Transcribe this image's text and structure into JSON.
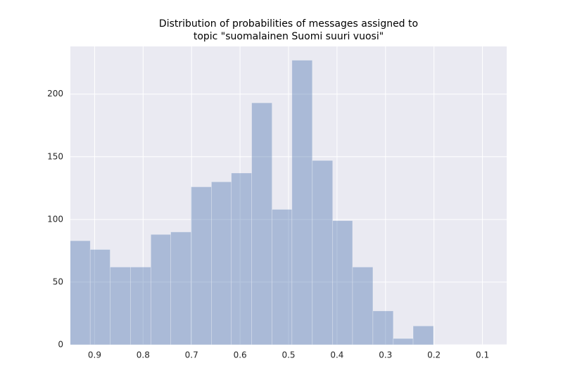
{
  "chart_data": {
    "type": "histogram",
    "title": [
      "Distribution of probabilities of messages assigned to",
      "topic \"suomalainen Suomi suuri vuosi\""
    ],
    "bins": [
      0.951,
      0.909,
      0.868,
      0.826,
      0.784,
      0.743,
      0.701,
      0.659,
      0.618,
      0.576,
      0.534,
      0.493,
      0.451,
      0.409,
      0.368,
      0.326,
      0.284,
      0.243,
      0.201
    ],
    "values": [
      83,
      76,
      62,
      62,
      88,
      90,
      126,
      130,
      137,
      193,
      108,
      227,
      147,
      99,
      62,
      27,
      5,
      15
    ],
    "color": "#4c72b0",
    "alpha": 0.4,
    "xlim": [
      0.95,
      0.05
    ],
    "xticks": [
      0.9,
      0.8,
      0.7,
      0.6,
      0.5,
      0.4,
      0.3,
      0.2,
      0.1
    ],
    "ylim": [
      0,
      238
    ],
    "yticks": [
      0,
      50,
      100,
      150,
      200
    ],
    "grid": true
  }
}
